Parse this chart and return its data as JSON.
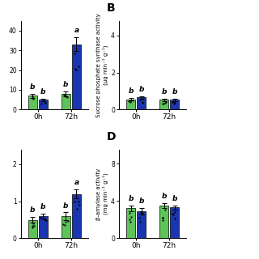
{
  "panels": [
    {
      "label": "A",
      "show_label": false,
      "ylabel": "",
      "yticks": [
        0,
        10,
        20,
        30,
        40
      ],
      "ylim": [
        0,
        45
      ],
      "groups": [
        "0h",
        "72h"
      ],
      "green_vals": [
        7.0,
        8.0
      ],
      "blue_vals": [
        5.0,
        33.0
      ],
      "green_err": [
        1.0,
        1.2
      ],
      "blue_err": [
        0.6,
        3.5
      ],
      "sig_green": [
        "b",
        "b"
      ],
      "sig_blue": [
        "b",
        "a"
      ]
    },
    {
      "label": "B",
      "show_label": true,
      "ylabel": "Sucrose phosphate synthase activity\n(μg min⁻¹ g⁻¹)",
      "yticks": [
        0,
        2,
        4
      ],
      "ylim": [
        0,
        4.8
      ],
      "groups": [
        "0h",
        "72h"
      ],
      "green_vals": [
        0.55,
        0.52
      ],
      "blue_vals": [
        0.65,
        0.52
      ],
      "green_err": [
        0.07,
        0.05
      ],
      "blue_err": [
        0.08,
        0.06
      ],
      "sig_green": [
        "b",
        "b"
      ],
      "sig_blue": [
        "b",
        "b"
      ]
    },
    {
      "label": "C",
      "show_label": false,
      "ylabel": "",
      "yticks": [
        0,
        1,
        2
      ],
      "ylim": [
        0,
        2.4
      ],
      "groups": [
        "0h",
        "72h"
      ],
      "green_vals": [
        0.5,
        0.6
      ],
      "blue_vals": [
        0.6,
        1.2
      ],
      "green_err": [
        0.08,
        0.1
      ],
      "blue_err": [
        0.07,
        0.12
      ],
      "sig_green": [
        "b",
        "b"
      ],
      "sig_blue": [
        "b",
        "a"
      ]
    },
    {
      "label": "D",
      "show_label": true,
      "ylabel": "β-amylase activity\n(mg min⁻¹ g⁻¹)",
      "yticks": [
        0,
        4,
        8
      ],
      "ylim": [
        0,
        9.5
      ],
      "groups": [
        "0h",
        "72h"
      ],
      "green_vals": [
        3.2,
        3.5
      ],
      "blue_vals": [
        2.9,
        3.3
      ],
      "green_err": [
        0.3,
        0.25
      ],
      "blue_err": [
        0.35,
        0.2
      ],
      "sig_green": [
        "b",
        "b"
      ],
      "sig_blue": [
        "b",
        "b"
      ]
    }
  ],
  "green_color": "#5ec45a",
  "blue_color": "#1a35b0",
  "bar_width": 0.28,
  "background_color": "#ffffff",
  "fontsize_ylabel": 5.0,
  "fontsize_tick": 5.5,
  "fontsize_sig": 6.5,
  "fontsize_panel_label": 10
}
